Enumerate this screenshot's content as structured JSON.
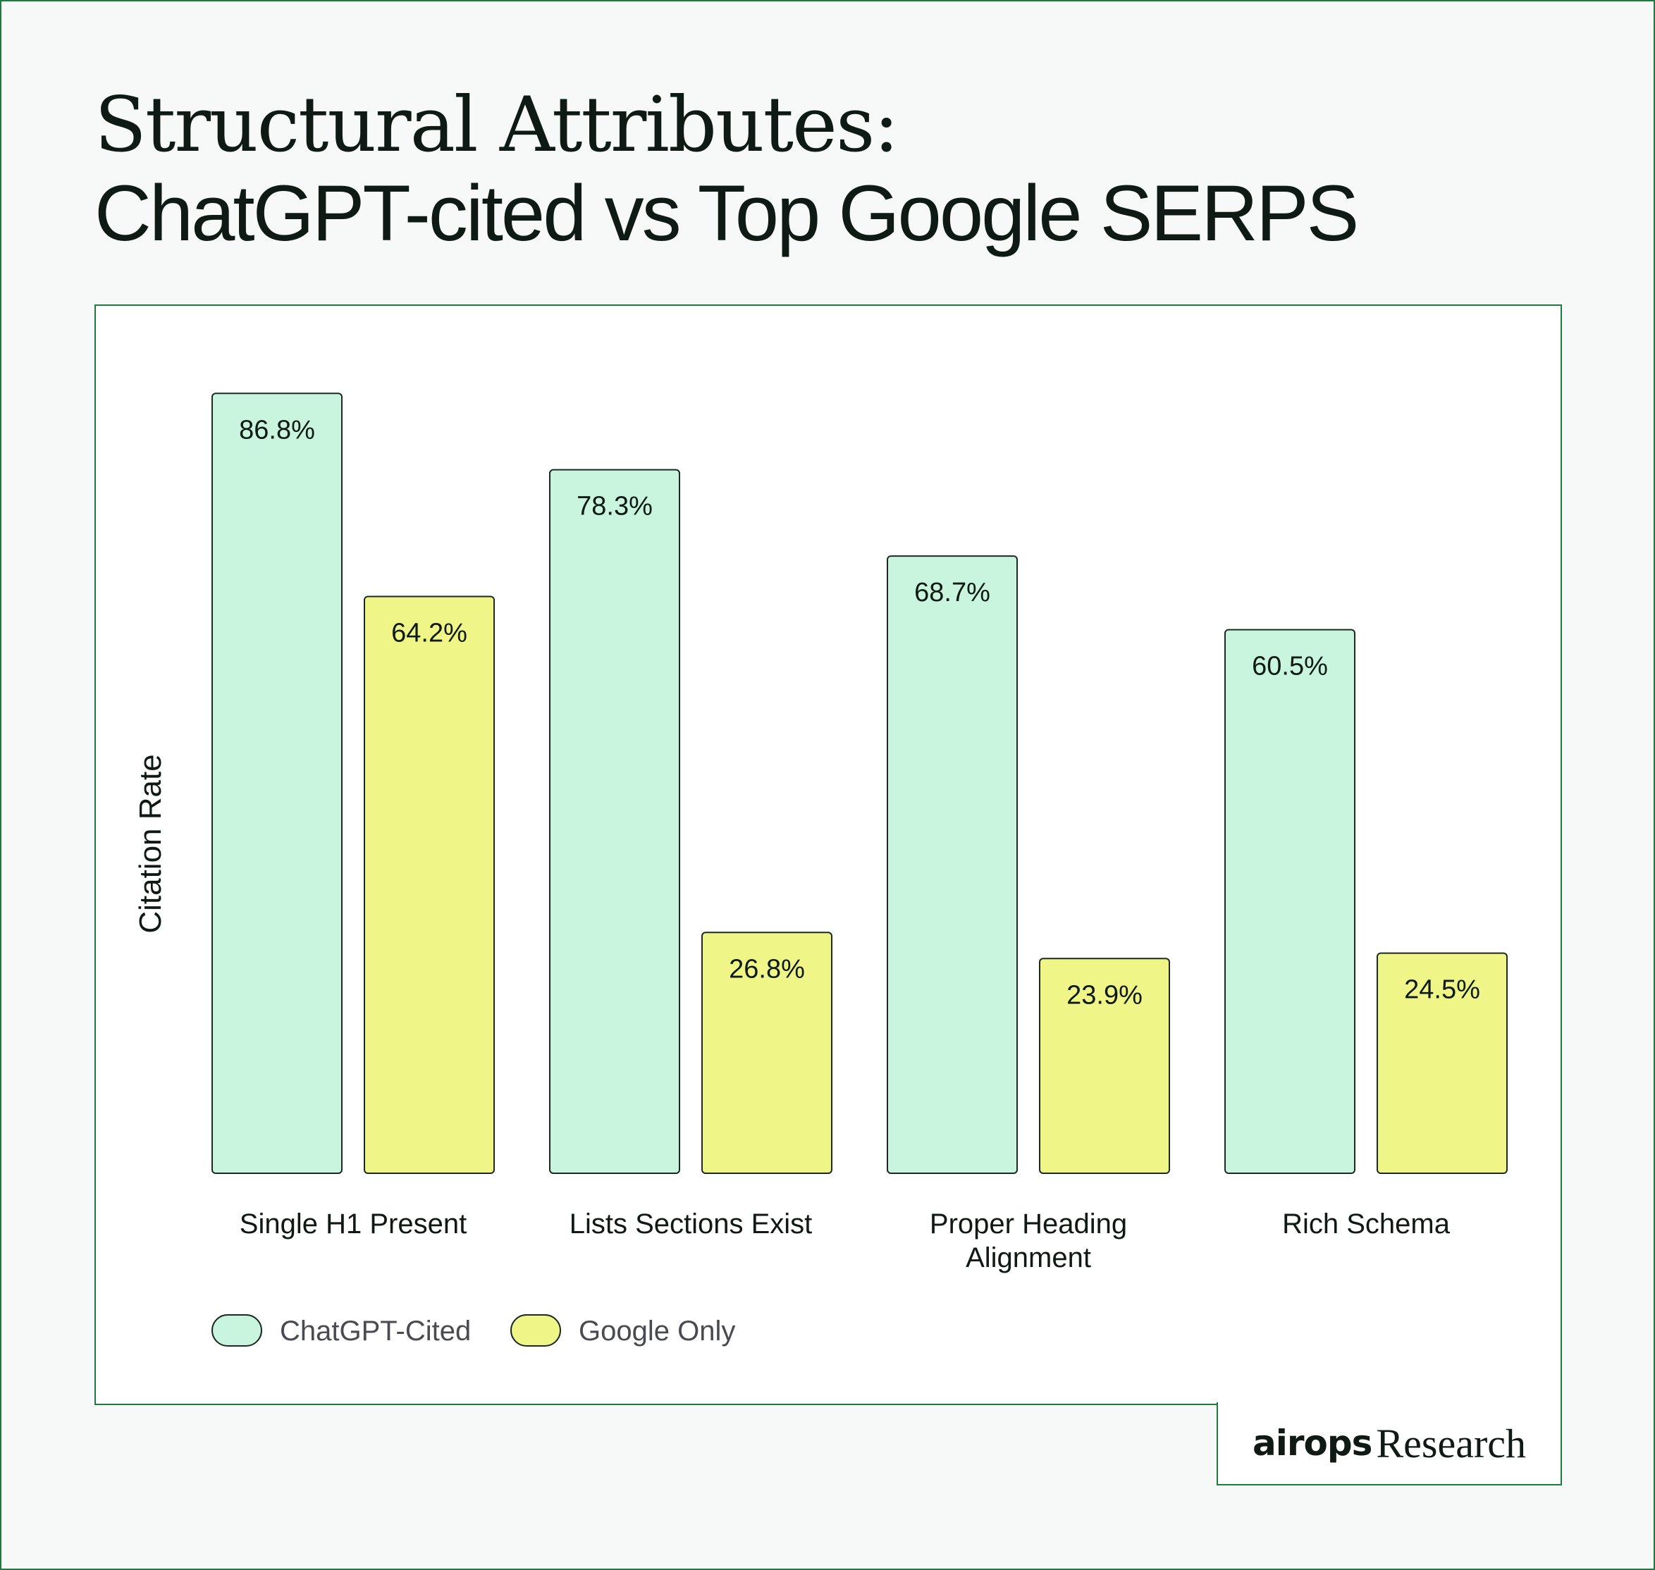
{
  "page": {
    "title_line1": "Structural Attributes:",
    "title_line2": "ChatGPT-cited vs Top Google SERPS",
    "brand_logo": "airops",
    "brand_suffix": "Research"
  },
  "colors": {
    "chatgpt": "#c9f5df",
    "google": "#eff587",
    "stroke": "#1b2a22",
    "frame": "#1f7a3e"
  },
  "chart_data": {
    "type": "bar",
    "ylabel": "Citation Rate",
    "xlabel": "",
    "ylim": [
      0,
      100
    ],
    "grid": false,
    "legend_position": "bottom-left",
    "categories": [
      "Single H1 Present",
      "Lists Sections Exist",
      "Proper Heading Alignment",
      "Rich Schema"
    ],
    "category_lines": [
      [
        "Single H1 Present"
      ],
      [
        "Lists Sections Exist"
      ],
      [
        "Proper Heading",
        "Alignment"
      ],
      [
        "Rich Schema"
      ]
    ],
    "series": [
      {
        "name": "ChatGPT-Cited",
        "color": "#c9f5df",
        "values": [
          86.8,
          78.3,
          68.7,
          60.5
        ],
        "labels": [
          "86.8%",
          "78.3%",
          "68.7%",
          "60.5%"
        ]
      },
      {
        "name": "Google Only",
        "color": "#eff587",
        "values": [
          64.2,
          26.8,
          23.9,
          24.5
        ],
        "labels": [
          "64.2%",
          "26.8%",
          "23.9%",
          "24.5%"
        ]
      }
    ]
  }
}
